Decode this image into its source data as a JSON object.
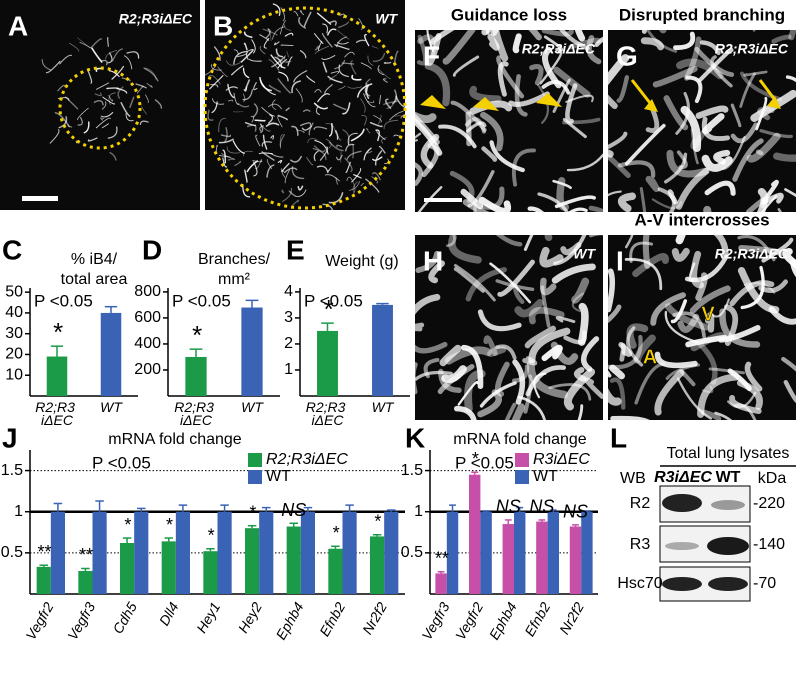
{
  "panels": [
    {
      "letter": "A",
      "label": "R2;R3iΔEC"
    },
    {
      "letter": "B",
      "label": "WT"
    },
    {
      "letter": "F",
      "heading": "Guidance loss",
      "label": "R2;R3iΔEC"
    },
    {
      "letter": "G",
      "heading": "Disrupted branching",
      "label": "R2;R3iΔEC"
    },
    {
      "letter": "H",
      "label": "WT"
    },
    {
      "letter": "I",
      "heading": "A-V intercrosses",
      "label": "R2;R3iΔEC",
      "markers": [
        "V",
        "A"
      ]
    }
  ],
  "chart_data": [
    {
      "type": "bar",
      "panel": "C",
      "title": [
        "% iB4/",
        "total area"
      ],
      "categories": [
        "R2;R3 iΔEC",
        "WT"
      ],
      "values": [
        19,
        40
      ],
      "errors": [
        5,
        3
      ],
      "colors": [
        "#1b9a48",
        "#3a63b5"
      ],
      "ylim": [
        0,
        52
      ],
      "yticks": [
        10,
        20,
        30,
        40,
        50
      ],
      "p_label": "P <0.05",
      "notes": [
        "*",
        null
      ]
    },
    {
      "type": "bar",
      "panel": "D",
      "title": [
        "Branches/",
        "mm²"
      ],
      "categories": [
        "R2;R3 iΔEC",
        "WT"
      ],
      "values": [
        300,
        680
      ],
      "errors": [
        60,
        55
      ],
      "colors": [
        "#1b9a48",
        "#3a63b5"
      ],
      "ylim": [
        0,
        830
      ],
      "yticks": [
        200,
        400,
        600,
        800
      ],
      "p_label": "P <0.05",
      "notes": [
        "*",
        null
      ]
    },
    {
      "type": "bar",
      "panel": "E",
      "title": [
        "Weight (g)"
      ],
      "categories": [
        "R2;R3 iΔEC",
        "WT"
      ],
      "values": [
        2.5,
        3.5
      ],
      "errors": [
        0.3,
        0.05
      ],
      "colors": [
        "#1b9a48",
        "#3a63b5"
      ],
      "ylim": [
        0,
        4.15
      ],
      "yticks": [
        1,
        2,
        3,
        4
      ],
      "p_label": "P <0.05",
      "notes": [
        "*",
        null
      ]
    },
    {
      "type": "bar",
      "panel": "J",
      "title": [
        "mRNA fold change"
      ],
      "categories": [
        "Vegfr2",
        "Vegfr3",
        "Cdh5",
        "Dll4",
        "Hey1",
        "Hey2",
        "Ephb4",
        "Efnb2",
        "Nr2f2"
      ],
      "series": [
        {
          "name": "R2;R3iΔEC",
          "color": "#1b9a48",
          "values": [
            0.33,
            0.28,
            0.62,
            0.64,
            0.52,
            0.8,
            0.82,
            0.55,
            0.7
          ],
          "errors": [
            0.02,
            0.03,
            0.06,
            0.04,
            0.03,
            0.03,
            0.04,
            0.03,
            0.02
          ]
        },
        {
          "name": "WT",
          "color": "#3a63b5",
          "values": [
            1,
            1,
            1,
            1,
            1,
            1,
            1,
            1,
            1
          ],
          "errors": [
            0.1,
            0.13,
            0.04,
            0.08,
            0.08,
            0.05,
            0.05,
            0.08,
            0.02
          ]
        }
      ],
      "ylim": [
        0,
        1.75
      ],
      "yticks": [
        0.5,
        1,
        1.5
      ],
      "reference_line": 1,
      "p_label": "P <0.05",
      "notes": [
        "**",
        "**",
        "*",
        "*",
        "*",
        "*",
        "NS",
        "*",
        "*"
      ]
    },
    {
      "type": "bar",
      "panel": "K",
      "title": [
        "mRNA fold change"
      ],
      "categories": [
        "Vegfr3",
        "Vegfr2",
        "Ephb4",
        "Efnb2",
        "Nr2f2"
      ],
      "series": [
        {
          "name": "R3iΔEC",
          "color": "#c64fa8",
          "values": [
            0.25,
            1.45,
            0.85,
            0.88,
            0.82
          ],
          "errors": [
            0.02,
            0.03,
            0.05,
            0.02,
            0.02
          ]
        },
        {
          "name": "WT",
          "color": "#3a63b5",
          "values": [
            1,
            1,
            1,
            1,
            1
          ],
          "errors": [
            0.08,
            0.01,
            0.05,
            0.02,
            0.01
          ]
        }
      ],
      "ylim": [
        0,
        1.75
      ],
      "yticks": [
        0.5,
        1,
        1.5
      ],
      "reference_line": 1,
      "p_label": "P <0.05",
      "notes": [
        "**",
        "*",
        "NS",
        "NS",
        "NS"
      ]
    }
  ],
  "blot": {
    "letter": "L",
    "title": "Total lung lysates",
    "wb": "WB",
    "columns": [
      "R3iΔEC",
      "WT"
    ],
    "unit": "kDa",
    "rows": [
      {
        "label": "R2",
        "kda": "-220"
      },
      {
        "label": "R3",
        "kda": "-140"
      },
      {
        "label": "Hsc70",
        "kda": "-70"
      }
    ]
  }
}
